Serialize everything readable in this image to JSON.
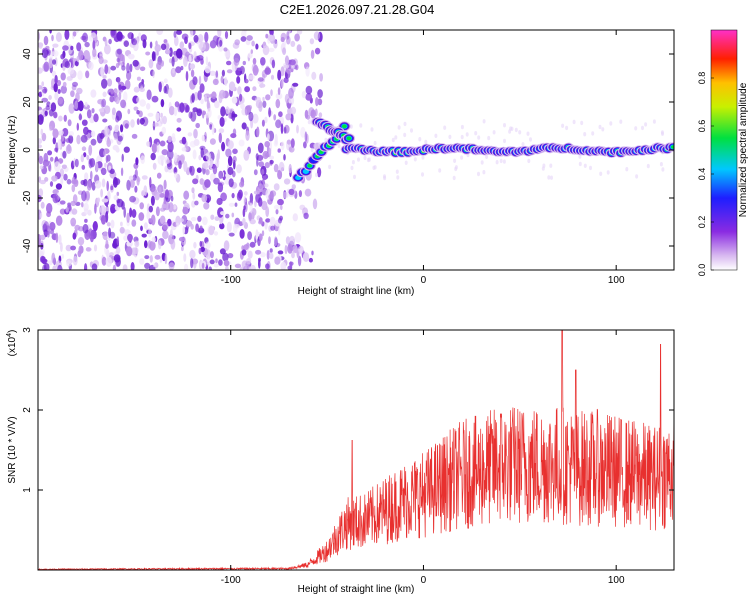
{
  "title": "C2E1.2026.097.21.28.G04",
  "colors": {
    "snr_line": "#e8302f",
    "axis": "#000000",
    "background": "#ffffff",
    "noise": "#8a2be2"
  },
  "chart_data": [
    {
      "type": "heatmap",
      "name": "spectrogram",
      "xlabel": "Height of straight line (km)",
      "ylabel": "Frequency (Hz)",
      "xlim": [
        -200,
        130
      ],
      "ylim": [
        -50,
        50
      ],
      "x_ticks": [
        -100,
        0,
        100
      ],
      "y_ticks": [
        -40,
        -20,
        0,
        20,
        40
      ],
      "colorbar": {
        "label": "Normalized spectral amplitude",
        "range": [
          0.0,
          1.0
        ],
        "ticks": [
          "0.0",
          "0.2",
          "0.4",
          "0.6",
          "0.8"
        ],
        "colormap": "rainbow (white-violet-blue-cyan-green-yellow-red-magenta)"
      },
      "features": {
        "noise_region_x": [
          -200,
          -65
        ],
        "signal_start_x": -65,
        "signal_frequency_hz": 0,
        "split_branches": [
          {
            "x_from": -65,
            "x_to": -40,
            "freq_from": -12,
            "freq_to": 10
          },
          {
            "x_from": -55,
            "x_to": -38,
            "freq_from": 12,
            "freq_to": 4
          }
        ]
      }
    },
    {
      "type": "line",
      "name": "snr",
      "xlabel": "Height of straight line (km)",
      "ylabel": "SNR (10 * V/V)",
      "y_scale_label": "(x10",
      "y_scale_exponent": "4",
      "y_scale_suffix": ")",
      "xlim": [
        -200,
        130
      ],
      "ylim": [
        0,
        3
      ],
      "x_ticks": [
        -100,
        0,
        100
      ],
      "y_ticks": [
        1,
        2,
        3
      ],
      "envelope": {
        "x": [
          -200,
          -70,
          -60,
          -50,
          -40,
          -30,
          -20,
          -10,
          0,
          10,
          20,
          30,
          40,
          50,
          60,
          70,
          80,
          90,
          100,
          110,
          120,
          130
        ],
        "y": [
          0.01,
          0.02,
          0.08,
          0.3,
          0.7,
          0.75,
          0.9,
          1.05,
          1.15,
          1.3,
          1.45,
          1.5,
          1.6,
          1.6,
          1.6,
          1.6,
          1.55,
          1.55,
          1.5,
          1.45,
          1.4,
          1.5
        ],
        "peaks": [
          {
            "x": -37,
            "y": 1.62
          },
          {
            "x": 40,
            "y": 1.95
          },
          {
            "x": 72,
            "y": 3.0
          },
          {
            "x": 79,
            "y": 2.5
          },
          {
            "x": 123,
            "y": 2.82
          }
        ]
      }
    }
  ]
}
